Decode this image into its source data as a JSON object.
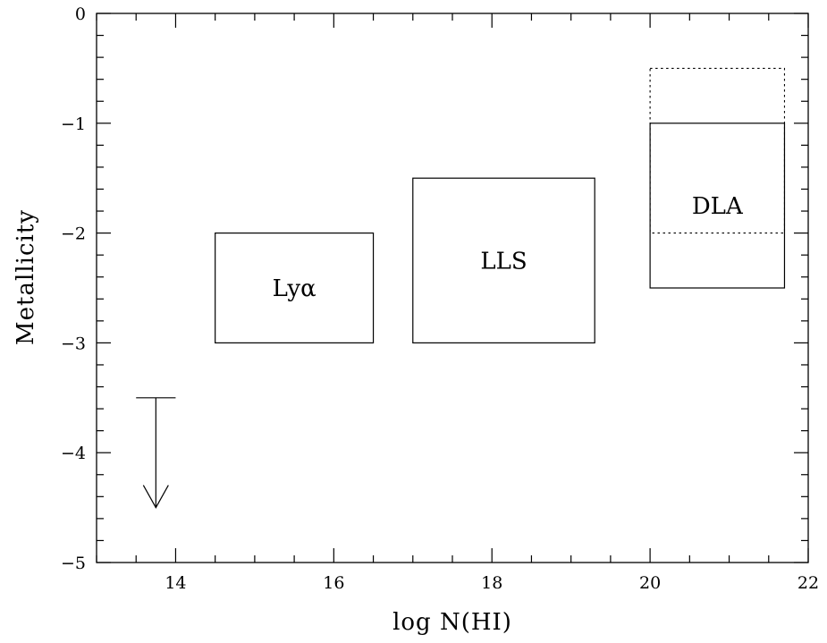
{
  "chart_data": {
    "type": "scatter",
    "title": "",
    "xlabel": "log N(HI)",
    "ylabel": "Metallicity",
    "xlim": [
      13,
      22
    ],
    "ylim": [
      -5,
      0
    ],
    "x_major_ticks": [
      14,
      16,
      18,
      20,
      22
    ],
    "x_minor_step": 0.5,
    "y_major_ticks": [
      0,
      -1,
      -2,
      -3,
      -4,
      -5
    ],
    "y_minor_step": 0.2,
    "x_tick_labels": [
      "14",
      "16",
      "18",
      "20",
      "22"
    ],
    "y_tick_labels": [
      "0",
      "−1",
      "−2",
      "−3",
      "−4",
      "−5"
    ],
    "grid": false,
    "legend": "none",
    "regions": [
      {
        "label": "Lyα",
        "x": [
          14.5,
          16.5
        ],
        "y": [
          -3.0,
          -2.0
        ],
        "style": "solid"
      },
      {
        "label": "LLS",
        "x": [
          17.0,
          19.3
        ],
        "y": [
          -3.0,
          -1.5
        ],
        "style": "solid"
      },
      {
        "label": "DLA",
        "x": [
          20.0,
          21.7
        ],
        "y": [
          -2.5,
          -1.0
        ],
        "style": "solid"
      }
    ],
    "dotted_regions": [
      {
        "x": [
          20.0,
          21.7
        ],
        "y": [
          -2.0,
          -0.5
        ],
        "style": "dotted"
      }
    ],
    "upper_limit": {
      "x": 13.75,
      "y": -3.5,
      "arrow_to": -4.5,
      "bar_halfwidth": 0.25
    }
  }
}
